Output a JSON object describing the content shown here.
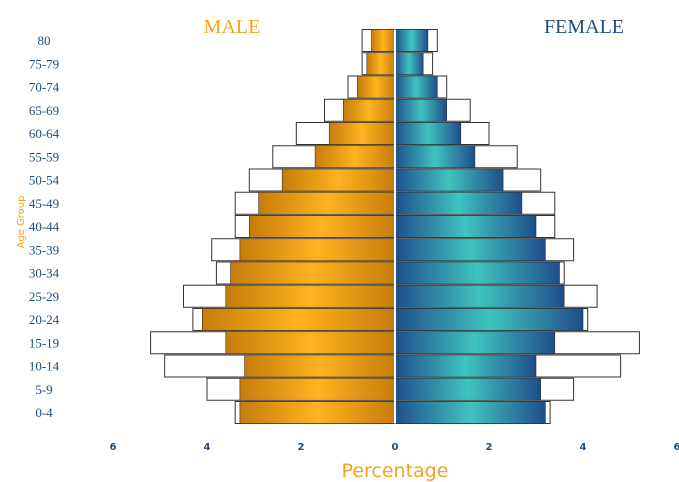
{
  "chart_data": {
    "type": "bar",
    "orientation": "horizontal-population-pyramid",
    "xlabel": "Percentage",
    "ylabel": "Age Group",
    "side_labels": {
      "left": "MALE",
      "right": "FEMALE"
    },
    "categories": [
      "0-4",
      "5-9",
      "10-14",
      "15-19",
      "20-24",
      "25-29",
      "30-34",
      "35-39",
      "40-44",
      "45-49",
      "50-54",
      "55-59",
      "60-64",
      "65-69",
      "70-74",
      "75-79",
      "80"
    ],
    "x_ticks": [
      "6",
      "4",
      "2",
      "0",
      "2",
      "4",
      "6"
    ],
    "xlim": [
      -6,
      6
    ],
    "series": [
      {
        "side": "left",
        "kind": "outline",
        "values": [
          3.4,
          4.0,
          4.9,
          5.2,
          4.3,
          4.5,
          3.8,
          3.9,
          3.4,
          3.4,
          3.1,
          2.6,
          2.1,
          1.5,
          1.0,
          0.7,
          0.7
        ]
      },
      {
        "side": "left",
        "kind": "filled",
        "values": [
          3.3,
          3.3,
          3.2,
          3.6,
          4.1,
          3.6,
          3.5,
          3.3,
          3.1,
          2.9,
          2.4,
          1.7,
          1.4,
          1.1,
          0.8,
          0.6,
          0.5
        ]
      },
      {
        "side": "right",
        "kind": "outline",
        "values": [
          3.3,
          3.8,
          4.8,
          5.2,
          4.1,
          4.3,
          3.6,
          3.8,
          3.4,
          3.4,
          3.1,
          2.6,
          2.0,
          1.6,
          1.1,
          0.8,
          0.9
        ]
      },
      {
        "side": "right",
        "kind": "filled",
        "values": [
          3.2,
          3.1,
          3.0,
          3.4,
          4.0,
          3.6,
          3.5,
          3.2,
          3.0,
          2.7,
          2.3,
          1.7,
          1.4,
          1.1,
          0.9,
          0.6,
          0.7
        ]
      }
    ],
    "colors": {
      "male_dark": "#c67c0b",
      "male_light": "#ffb320",
      "female_dark": "#1f4e8a",
      "female_light": "#40c3c0",
      "text_blue": "#1f4e79",
      "accent_orange": "#f5a21f",
      "outline": "#333333"
    },
    "grid": false,
    "legend": "none"
  }
}
